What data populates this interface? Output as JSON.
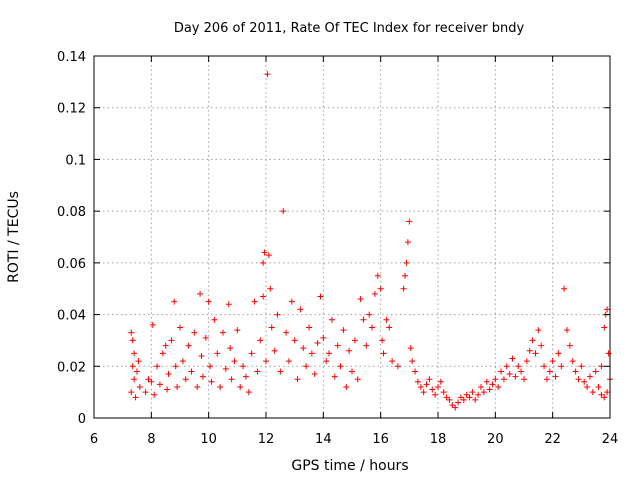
{
  "chart_data": {
    "type": "scatter",
    "title": "Day 206 of 2011, Rate Of TEC Index for receiver bndy",
    "xlabel": "GPS time / hours",
    "ylabel": "ROTI / TECUs",
    "xlim": [
      6,
      24
    ],
    "ylim": [
      0,
      0.14
    ],
    "xticks": [
      6,
      8,
      10,
      12,
      14,
      16,
      18,
      20,
      22,
      24
    ],
    "xtick_labels": [
      "6",
      "8",
      "10",
      "12",
      "14",
      "16",
      "18",
      "20",
      "22",
      "24"
    ],
    "yticks": [
      0,
      0.02,
      0.04,
      0.06,
      0.08,
      0.1,
      0.12,
      0.14
    ],
    "ytick_labels": [
      "0",
      "0.02",
      "0.04",
      "0.06",
      "0.08",
      "0.1",
      "0.12",
      "0.14"
    ],
    "grid": true,
    "marker": "+",
    "color": "#ff0000",
    "series": [
      {
        "name": "ROTI",
        "points": [
          [
            7.3,
            0.033
          ],
          [
            7.35,
            0.03
          ],
          [
            7.4,
            0.025
          ],
          [
            7.35,
            0.02
          ],
          [
            7.4,
            0.015
          ],
          [
            7.3,
            0.01
          ],
          [
            7.45,
            0.008
          ],
          [
            7.5,
            0.018
          ],
          [
            7.55,
            0.022
          ],
          [
            7.6,
            0.012
          ],
          [
            7.8,
            0.01
          ],
          [
            7.9,
            0.015
          ],
          [
            8.0,
            0.014
          ],
          [
            8.05,
            0.036
          ],
          [
            8.1,
            0.009
          ],
          [
            8.2,
            0.02
          ],
          [
            8.3,
            0.013
          ],
          [
            8.4,
            0.025
          ],
          [
            8.5,
            0.028
          ],
          [
            8.55,
            0.011
          ],
          [
            8.6,
            0.017
          ],
          [
            8.7,
            0.03
          ],
          [
            8.8,
            0.045
          ],
          [
            8.85,
            0.02
          ],
          [
            8.9,
            0.012
          ],
          [
            9.0,
            0.035
          ],
          [
            9.1,
            0.022
          ],
          [
            9.2,
            0.015
          ],
          [
            9.3,
            0.028
          ],
          [
            9.4,
            0.018
          ],
          [
            9.5,
            0.033
          ],
          [
            9.6,
            0.012
          ],
          [
            9.7,
            0.048
          ],
          [
            9.75,
            0.024
          ],
          [
            9.8,
            0.016
          ],
          [
            9.9,
            0.031
          ],
          [
            10.0,
            0.045
          ],
          [
            10.05,
            0.02
          ],
          [
            10.1,
            0.014
          ],
          [
            10.2,
            0.038
          ],
          [
            10.3,
            0.025
          ],
          [
            10.4,
            0.012
          ],
          [
            10.5,
            0.033
          ],
          [
            10.6,
            0.019
          ],
          [
            10.7,
            0.044
          ],
          [
            10.75,
            0.027
          ],
          [
            10.8,
            0.015
          ],
          [
            10.9,
            0.022
          ],
          [
            11.0,
            0.034
          ],
          [
            11.1,
            0.012
          ],
          [
            11.2,
            0.02
          ],
          [
            11.3,
            0.016
          ],
          [
            11.4,
            0.01
          ],
          [
            11.5,
            0.025
          ],
          [
            11.6,
            0.045
          ],
          [
            11.7,
            0.018
          ],
          [
            11.8,
            0.03
          ],
          [
            11.9,
            0.06
          ],
          [
            11.95,
            0.064
          ],
          [
            11.9,
            0.047
          ],
          [
            12.0,
            0.022
          ],
          [
            12.05,
            0.133
          ],
          [
            12.1,
            0.063
          ],
          [
            12.15,
            0.05
          ],
          [
            12.2,
            0.035
          ],
          [
            12.3,
            0.026
          ],
          [
            12.4,
            0.04
          ],
          [
            12.5,
            0.018
          ],
          [
            12.6,
            0.08
          ],
          [
            12.7,
            0.033
          ],
          [
            12.8,
            0.022
          ],
          [
            12.9,
            0.045
          ],
          [
            13.0,
            0.03
          ],
          [
            13.1,
            0.015
          ],
          [
            13.2,
            0.042
          ],
          [
            13.3,
            0.027
          ],
          [
            13.4,
            0.02
          ],
          [
            13.5,
            0.035
          ],
          [
            13.6,
            0.025
          ],
          [
            13.7,
            0.017
          ],
          [
            13.8,
            0.029
          ],
          [
            13.9,
            0.047
          ],
          [
            14.0,
            0.031
          ],
          [
            14.1,
            0.022
          ],
          [
            14.2,
            0.025
          ],
          [
            14.3,
            0.038
          ],
          [
            14.4,
            0.016
          ],
          [
            14.5,
            0.028
          ],
          [
            14.6,
            0.02
          ],
          [
            14.7,
            0.034
          ],
          [
            14.8,
            0.012
          ],
          [
            14.9,
            0.026
          ],
          [
            15.0,
            0.018
          ],
          [
            15.1,
            0.03
          ],
          [
            15.2,
            0.015
          ],
          [
            15.3,
            0.046
          ],
          [
            15.4,
            0.038
          ],
          [
            15.5,
            0.028
          ],
          [
            15.6,
            0.04
          ],
          [
            15.7,
            0.035
          ],
          [
            15.8,
            0.048
          ],
          [
            15.9,
            0.055
          ],
          [
            16.0,
            0.05
          ],
          [
            16.05,
            0.03
          ],
          [
            16.1,
            0.025
          ],
          [
            16.2,
            0.038
          ],
          [
            16.3,
            0.035
          ],
          [
            16.4,
            0.022
          ],
          [
            16.6,
            0.02
          ],
          [
            16.8,
            0.05
          ],
          [
            16.85,
            0.055
          ],
          [
            16.9,
            0.06
          ],
          [
            16.95,
            0.068
          ],
          [
            17.0,
            0.076
          ],
          [
            17.05,
            0.027
          ],
          [
            17.1,
            0.022
          ],
          [
            17.2,
            0.018
          ],
          [
            17.3,
            0.014
          ],
          [
            17.4,
            0.012
          ],
          [
            17.5,
            0.01
          ],
          [
            17.6,
            0.013
          ],
          [
            17.7,
            0.015
          ],
          [
            17.8,
            0.011
          ],
          [
            17.9,
            0.009
          ],
          [
            18.0,
            0.012
          ],
          [
            18.1,
            0.014
          ],
          [
            18.2,
            0.01
          ],
          [
            18.3,
            0.008
          ],
          [
            18.4,
            0.007
          ],
          [
            18.5,
            0.005
          ],
          [
            18.6,
            0.004
          ],
          [
            18.7,
            0.006
          ],
          [
            18.8,
            0.008
          ],
          [
            18.9,
            0.007
          ],
          [
            19.0,
            0.009
          ],
          [
            19.1,
            0.008
          ],
          [
            19.2,
            0.01
          ],
          [
            19.3,
            0.007
          ],
          [
            19.4,
            0.009
          ],
          [
            19.5,
            0.012
          ],
          [
            19.6,
            0.01
          ],
          [
            19.7,
            0.014
          ],
          [
            19.8,
            0.011
          ],
          [
            19.9,
            0.013
          ],
          [
            20.0,
            0.015
          ],
          [
            20.1,
            0.012
          ],
          [
            20.2,
            0.018
          ],
          [
            20.3,
            0.015
          ],
          [
            20.4,
            0.02
          ],
          [
            20.5,
            0.017
          ],
          [
            20.6,
            0.023
          ],
          [
            20.7,
            0.016
          ],
          [
            20.8,
            0.02
          ],
          [
            20.9,
            0.018
          ],
          [
            21.0,
            0.015
          ],
          [
            21.1,
            0.022
          ],
          [
            21.2,
            0.026
          ],
          [
            21.3,
            0.03
          ],
          [
            21.4,
            0.025
          ],
          [
            21.5,
            0.034
          ],
          [
            21.6,
            0.028
          ],
          [
            21.7,
            0.02
          ],
          [
            21.8,
            0.015
          ],
          [
            21.9,
            0.018
          ],
          [
            22.0,
            0.022
          ],
          [
            22.1,
            0.016
          ],
          [
            22.2,
            0.025
          ],
          [
            22.3,
            0.02
          ],
          [
            22.4,
            0.05
          ],
          [
            22.5,
            0.034
          ],
          [
            22.6,
            0.028
          ],
          [
            22.7,
            0.022
          ],
          [
            22.8,
            0.018
          ],
          [
            22.9,
            0.015
          ],
          [
            23.0,
            0.02
          ],
          [
            23.1,
            0.014
          ],
          [
            23.2,
            0.012
          ],
          [
            23.3,
            0.016
          ],
          [
            23.4,
            0.01
          ],
          [
            23.5,
            0.018
          ],
          [
            23.6,
            0.012
          ],
          [
            23.7,
            0.02
          ],
          [
            23.8,
            0.035
          ],
          [
            23.85,
            0.04
          ],
          [
            23.9,
            0.042
          ],
          [
            23.95,
            0.025
          ],
          [
            24.0,
            0.015
          ],
          [
            23.9,
            0.01
          ],
          [
            23.8,
            0.008
          ],
          [
            23.7,
            0.009
          ]
        ]
      }
    ]
  }
}
